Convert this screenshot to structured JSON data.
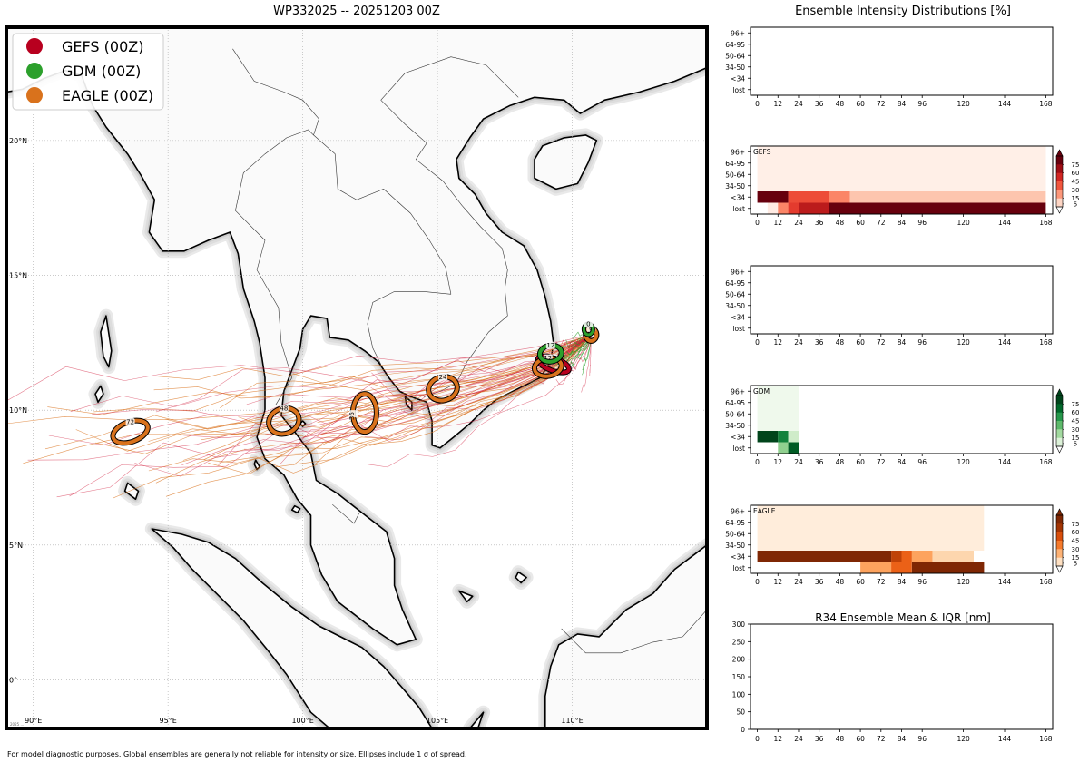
{
  "map": {
    "title": "WP332025 -- 20251203 00Z",
    "lon_ticks": [
      "90°E",
      "95°E",
      "100°E",
      "105°E",
      "110°E"
    ],
    "lat_ticks": [
      "20°N",
      "15°N",
      "10°N",
      "5°N",
      "0°"
    ],
    "legend": [
      {
        "label": "GEFS (00Z)",
        "color": "#b8001f"
      },
      {
        "label": "GDM (00Z)",
        "color": "#2ca02c"
      },
      {
        "label": "EAGLE (00Z)",
        "color": "#d9721c"
      }
    ],
    "colors": {
      "land": "#fafafa",
      "coast": "#000000",
      "shade": "#cccccc",
      "ocean": "#ffffff"
    },
    "ellipse_labels": [
      {
        "model": "GEFS",
        "tau": "0",
        "lon": 110.7,
        "lat": 12.8
      },
      {
        "model": "GDM",
        "tau": "0",
        "lon": 110.6,
        "lat": 13.0
      },
      {
        "model": "EAGLE",
        "tau": "0",
        "lon": 110.7,
        "lat": 12.8
      },
      {
        "model": "GDM",
        "tau": "12",
        "lon": 109.2,
        "lat": 12.1
      },
      {
        "model": "GEFS",
        "tau": "12",
        "lon": 109.3,
        "lat": 11.7
      },
      {
        "model": "EAGLE",
        "tau": "12",
        "lon": 109.1,
        "lat": 11.6
      },
      {
        "model": "EAGLE",
        "tau": "24",
        "lon": 105.2,
        "lat": 10.8
      },
      {
        "model": "EAGLE",
        "tau": "36",
        "lon": 102.3,
        "lat": 9.9
      },
      {
        "model": "EAGLE",
        "tau": "48",
        "lon": 99.3,
        "lat": 9.6
      },
      {
        "model": "EAGLE",
        "tau": "72",
        "lon": 93.6,
        "lat": 9.2
      }
    ],
    "watermark": "2025 ..."
  },
  "right": {
    "title": "Ensemble Intensity Distributions [%]",
    "y_cats": [
      "96+",
      "64-95",
      "50-64",
      "34-50",
      "<34",
      "lost"
    ],
    "x_ticks": [
      "0",
      "12",
      "24",
      "36",
      "48",
      "60",
      "72",
      "84",
      "96",
      "120",
      "144",
      "168"
    ],
    "colorbar_ticks": [
      "75",
      "60",
      "45",
      "30",
      "15",
      "5"
    ],
    "panels": [
      {
        "name": "",
        "colormap": "none",
        "cells": []
      },
      {
        "name": "GEFS",
        "colormap": "reds",
        "cells": [
          {
            "row": "96+",
            "t0": 0,
            "t1": 168,
            "pct": 2
          },
          {
            "row": "64-95",
            "t0": 0,
            "t1": 168,
            "pct": 2
          },
          {
            "row": "50-64",
            "t0": 0,
            "t1": 168,
            "pct": 2
          },
          {
            "row": "34-50",
            "t0": 0,
            "t1": 168,
            "pct": 2
          },
          {
            "row": "<34",
            "t0": 0,
            "t1": 18,
            "pct": 90
          },
          {
            "row": "<34",
            "t0": 18,
            "t1": 42,
            "pct": 45
          },
          {
            "row": "<34",
            "t0": 42,
            "t1": 54,
            "pct": 30
          },
          {
            "row": "<34",
            "t0": 54,
            "t1": 168,
            "pct": 15
          },
          {
            "row": "lost",
            "t0": 6,
            "t1": 12,
            "pct": 3
          },
          {
            "row": "lost",
            "t0": 12,
            "t1": 18,
            "pct": 30
          },
          {
            "row": "lost",
            "t0": 18,
            "t1": 24,
            "pct": 50
          },
          {
            "row": "lost",
            "t0": 24,
            "t1": 42,
            "pct": 65
          },
          {
            "row": "lost",
            "t0": 42,
            "t1": 168,
            "pct": 90
          }
        ]
      },
      {
        "name": "",
        "colormap": "none",
        "cells": []
      },
      {
        "name": "GDM",
        "colormap": "greens",
        "cells": [
          {
            "row": "96+",
            "t0": 0,
            "t1": 24,
            "pct": 3
          },
          {
            "row": "64-95",
            "t0": 0,
            "t1": 24,
            "pct": 3
          },
          {
            "row": "50-64",
            "t0": 0,
            "t1": 24,
            "pct": 3
          },
          {
            "row": "34-50",
            "t0": 0,
            "t1": 24,
            "pct": 3
          },
          {
            "row": "<34",
            "t0": 0,
            "t1": 12,
            "pct": 90
          },
          {
            "row": "<34",
            "t0": 12,
            "t1": 18,
            "pct": 65
          },
          {
            "row": "<34",
            "t0": 18,
            "t1": 24,
            "pct": 15
          },
          {
            "row": "lost",
            "t0": 12,
            "t1": 18,
            "pct": 30
          },
          {
            "row": "lost",
            "t0": 18,
            "t1": 24,
            "pct": 80
          }
        ]
      },
      {
        "name": "EAGLE",
        "colormap": "oranges",
        "cells": [
          {
            "row": "96+",
            "t0": 0,
            "t1": 132,
            "pct": 4
          },
          {
            "row": "64-95",
            "t0": 0,
            "t1": 132,
            "pct": 4
          },
          {
            "row": "50-64",
            "t0": 0,
            "t1": 132,
            "pct": 4
          },
          {
            "row": "34-50",
            "t0": 0,
            "t1": 132,
            "pct": 4
          },
          {
            "row": "<34",
            "t0": 0,
            "t1": 78,
            "pct": 90
          },
          {
            "row": "<34",
            "t0": 78,
            "t1": 84,
            "pct": 65
          },
          {
            "row": "<34",
            "t0": 84,
            "t1": 90,
            "pct": 50
          },
          {
            "row": "<34",
            "t0": 90,
            "t1": 102,
            "pct": 30
          },
          {
            "row": "<34",
            "t0": 102,
            "t1": 126,
            "pct": 15
          },
          {
            "row": "lost",
            "t0": 60,
            "t1": 78,
            "pct": 30
          },
          {
            "row": "lost",
            "t0": 78,
            "t1": 90,
            "pct": 50
          },
          {
            "row": "lost",
            "t0": 90,
            "t1": 132,
            "pct": 90
          }
        ]
      }
    ],
    "r34": {
      "title": "R34 Ensemble Mean & IQR [nm]",
      "y_ticks": [
        "0",
        "50",
        "100",
        "150",
        "200",
        "250",
        "300"
      ],
      "ylim": [
        0,
        300
      ]
    }
  },
  "footer": "For model diagnostic purposes. Global ensembles are generally not reliable for intensity or size. Ellipses include 1 σ of spread.",
  "chart_data": [
    {
      "type": "scatter",
      "title": "WP332025 -- 20251203 00Z",
      "xlim": [
        89,
        115
      ],
      "ylim": [
        -1.8,
        24.2
      ],
      "series": [
        {
          "name": "GEFS (00Z)",
          "color": "#b8001f",
          "x": [
            110.7,
            109.3
          ],
          "y": [
            12.8,
            11.7
          ]
        },
        {
          "name": "GDM (00Z)",
          "color": "#2ca02c",
          "x": [
            110.6,
            109.2
          ],
          "y": [
            13.0,
            12.1
          ]
        },
        {
          "name": "EAGLE (00Z)",
          "color": "#d9721c",
          "x": [
            110.7,
            109.1,
            105.2,
            102.3,
            99.3,
            93.6
          ],
          "y": [
            12.8,
            11.6,
            10.8,
            9.9,
            9.6,
            9.2
          ]
        }
      ]
    },
    {
      "type": "heatmap",
      "title": "Ensemble Intensity Distributions [%]",
      "panel": "GEFS"
    },
    {
      "type": "heatmap",
      "panel": "GDM"
    },
    {
      "type": "heatmap",
      "panel": "EAGLE"
    },
    {
      "type": "line",
      "title": "R34 Ensemble Mean & IQR [nm]",
      "ylim": [
        0,
        300
      ],
      "series": []
    }
  ]
}
